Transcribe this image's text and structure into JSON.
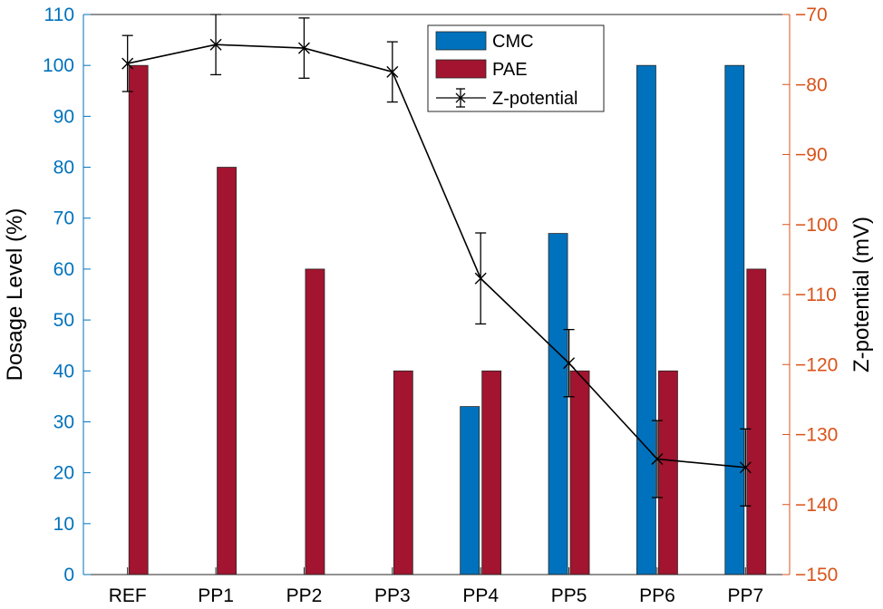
{
  "colors": {
    "cmc": "#0072BD",
    "pae": "#A2142F",
    "zpotential": "#000000",
    "left_axis": "#0072BD",
    "right_axis": "#D95319"
  },
  "chart_data": {
    "type": "bar",
    "categories": [
      "REF",
      "PP1",
      "PP2",
      "PP3",
      "PP4",
      "PP5",
      "PP6",
      "PP7"
    ],
    "series": [
      {
        "name": "CMC",
        "axis": "left",
        "kind": "bar",
        "values": [
          0,
          0,
          0,
          0,
          33,
          67,
          100,
          100
        ]
      },
      {
        "name": "PAE",
        "axis": "left",
        "kind": "bar",
        "values": [
          100,
          80,
          60,
          40,
          40,
          40,
          40,
          60
        ]
      },
      {
        "name": "Z-potential",
        "axis": "right",
        "kind": "line",
        "marker": "x",
        "values": [
          -77,
          -74.3,
          -74.8,
          -78.2,
          -107.7,
          -119.8,
          -133.5,
          -134.7
        ],
        "error": [
          4,
          4.3,
          4.3,
          4.3,
          6.5,
          4.8,
          5.5,
          5.5
        ]
      }
    ],
    "ylabel": "Dosage Level (%)",
    "ylim": [
      0,
      110
    ],
    "yticks": [
      0,
      10,
      20,
      30,
      40,
      50,
      60,
      70,
      80,
      90,
      100,
      110
    ],
    "y2label": "Z-potential (mV)",
    "y2lim": [
      -150,
      -70
    ],
    "y2ticks": [
      -150,
      -140,
      -130,
      -120,
      -110,
      -100,
      -90,
      -80,
      -70
    ],
    "legend": {
      "position": "top-center",
      "entries": [
        "CMC",
        "PAE",
        "Z-potential"
      ]
    }
  }
}
